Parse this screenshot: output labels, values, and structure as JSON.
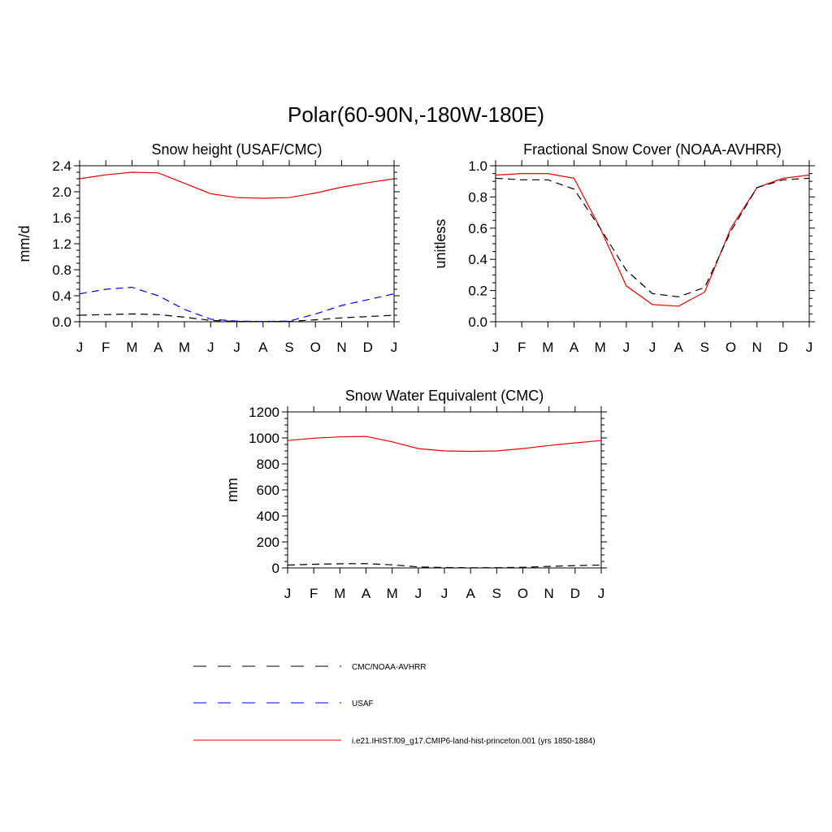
{
  "figure": {
    "title": "Polar(60-90N,-180W-180E)"
  },
  "colors": {
    "obs": "#000000",
    "usaf": "#0000ee",
    "model": "#ee0000"
  },
  "legend": [
    {
      "label": "CMC/NOAA-AVHRR",
      "color": "#000000",
      "dash": "dashed"
    },
    {
      "label": "USAF",
      "color": "#0000ee",
      "dash": "dashed"
    },
    {
      "label": "i.e21.IHIST.f09_g17.CMIP6-land-hist-princeton.001 (yrs 1850-1884)",
      "color": "#ee0000",
      "dash": "solid"
    }
  ],
  "chart_data": [
    {
      "type": "line",
      "title": "Snow height (USAF/CMC)",
      "ylabel": "mm/d",
      "xlabel": "",
      "x": [
        "J",
        "F",
        "M",
        "A",
        "M",
        "J",
        "J",
        "A",
        "S",
        "O",
        "N",
        "D",
        "J"
      ],
      "ylim": [
        0,
        2.4
      ],
      "yticks": [
        "0.0",
        "0.4",
        "0.8",
        "1.2",
        "1.6",
        "2.0",
        "2.4"
      ],
      "series": [
        {
          "name": "i.e21.IHIST.f09_g17.CMIP6-land-hist-princeton.001 (yrs 1850-1884)",
          "color": "#ee0000",
          "dash": "solid",
          "values": [
            2.2,
            2.26,
            2.3,
            2.29,
            2.13,
            1.97,
            1.91,
            1.9,
            1.91,
            1.98,
            2.07,
            2.14,
            2.2
          ]
        },
        {
          "name": "USAF",
          "color": "#0000ee",
          "dash": "dashed",
          "values": [
            0.43,
            0.5,
            0.53,
            0.4,
            0.19,
            0.04,
            0.01,
            0.005,
            0.01,
            0.12,
            0.25,
            0.34,
            0.43
          ]
        },
        {
          "name": "CMC/NOAA-AVHRR",
          "color": "#000000",
          "dash": "dashed",
          "values": [
            0.1,
            0.11,
            0.12,
            0.11,
            0.07,
            0.02,
            0.005,
            0.002,
            0.005,
            0.03,
            0.06,
            0.08,
            0.1
          ]
        }
      ]
    },
    {
      "type": "line",
      "title": "Fractional Snow Cover (NOAA-AVHRR)",
      "ylabel": "unitless",
      "xlabel": "",
      "x": [
        "J",
        "F",
        "M",
        "A",
        "M",
        "J",
        "J",
        "A",
        "S",
        "O",
        "N",
        "D",
        "J"
      ],
      "ylim": [
        0,
        1.0
      ],
      "yticks": [
        "0.0",
        "0.2",
        "0.4",
        "0.6",
        "0.8",
        "1.0"
      ],
      "series": [
        {
          "name": "i.e21.IHIST.f09_g17.CMIP6-land-hist-princeton.001 (yrs 1850-1884)",
          "color": "#ee0000",
          "dash": "solid",
          "values": [
            0.94,
            0.95,
            0.95,
            0.92,
            0.6,
            0.23,
            0.11,
            0.1,
            0.19,
            0.6,
            0.86,
            0.92,
            0.94
          ]
        },
        {
          "name": "CMC/NOAA-AVHRR",
          "color": "#000000",
          "dash": "dashed",
          "values": [
            0.92,
            0.91,
            0.91,
            0.85,
            0.6,
            0.33,
            0.18,
            0.16,
            0.22,
            0.58,
            0.86,
            0.91,
            0.92
          ]
        }
      ]
    },
    {
      "type": "line",
      "title": "Snow Water Equivalent (CMC)",
      "ylabel": "mm",
      "xlabel": "",
      "x": [
        "J",
        "F",
        "M",
        "A",
        "M",
        "J",
        "J",
        "A",
        "S",
        "O",
        "N",
        "D",
        "J"
      ],
      "ylim": [
        0,
        1200
      ],
      "yticks": [
        "0",
        "200",
        "400",
        "600",
        "800",
        "1000",
        "1200"
      ],
      "series": [
        {
          "name": "i.e21.IHIST.f09_g17.CMIP6-land-hist-princeton.001 (yrs 1850-1884)",
          "color": "#ee0000",
          "dash": "solid",
          "values": [
            980,
            998,
            1008,
            1012,
            970,
            918,
            900,
            897,
            900,
            918,
            942,
            962,
            980
          ]
        },
        {
          "name": "CMC/NOAA-AVHRR",
          "color": "#000000",
          "dash": "dashed",
          "values": [
            22,
            28,
            32,
            33,
            24,
            8,
            3,
            1,
            2,
            5,
            12,
            18,
            22
          ]
        }
      ]
    }
  ]
}
